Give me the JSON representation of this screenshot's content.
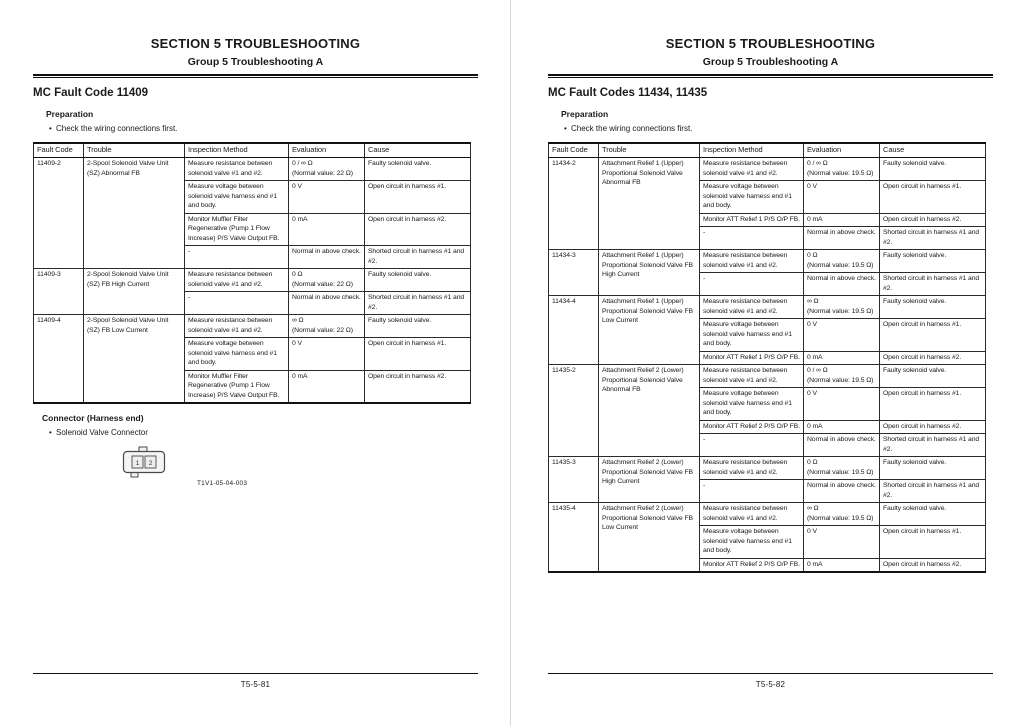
{
  "colors": {
    "text": "#1a1a1a",
    "rule": "#111111",
    "page_divider": "#d9d9d9"
  },
  "table_headers": [
    "Fault Code",
    "Trouble",
    "Inspection Method",
    "Evaluation",
    "Cause"
  ],
  "pages": [
    {
      "section_title": "SECTION 5 TROUBLESHOOTING",
      "group_title": "Group 5 Troubleshooting A",
      "heading": "MC Fault Code 11409",
      "preparation_label": "Preparation",
      "bullet": "•",
      "preparation_item": "Check the wiring connections first.",
      "table": {
        "headers": [
          "Fault Code",
          "Trouble",
          "Inspection Method",
          "Evaluation",
          "Cause"
        ],
        "rows": [
          {
            "fault_code": "11409-2",
            "trouble": "2-Spool Solenoid Valve Unit (SZ) Abnormal FB",
            "checks": [
              {
                "inspection": "Measure resistance between solenoid valve #1 and #2.",
                "evaluation": "0 / ∞ Ω",
                "evaluation_note": "(Normal value: 22 Ω)",
                "cause": "Faulty solenoid valve."
              },
              {
                "inspection": "Measure voltage between solenoid valve harness end #1 and body.",
                "evaluation": "0 V",
                "cause": "Open circuit in harness #1."
              },
              {
                "inspection": "Monitor Muffler Filter Regenerative (Pump 1 Flow Increase) P/S Valve Output FB.",
                "evaluation": "0 mA",
                "cause": "Open circuit in harness #2."
              },
              {
                "inspection": "-",
                "evaluation": "Normal in above check.",
                "cause": "Shorted circuit in harness #1 and #2."
              }
            ]
          },
          {
            "fault_code": "11409-3",
            "trouble": "2-Spool Solenoid Valve Unit (SZ) FB High Current",
            "checks": [
              {
                "inspection": "Measure resistance between solenoid valve #1 and #2.",
                "evaluation": "0 Ω",
                "evaluation_note": "(Normal value: 22 Ω)",
                "cause": "Faulty solenoid valve."
              },
              {
                "inspection": "-",
                "evaluation": "Normal in above check.",
                "cause": "Shorted circuit in harness #1 and #2."
              }
            ]
          },
          {
            "fault_code": "11409-4",
            "trouble": "2-Spool Solenoid Valve Unit (SZ) FB Low Current",
            "checks": [
              {
                "inspection": "Measure resistance between solenoid valve #1 and #2.",
                "evaluation": "∞ Ω",
                "evaluation_note": "(Normal value: 22 Ω)",
                "cause": "Faulty solenoid valve."
              },
              {
                "inspection": "Measure voltage between solenoid valve harness end #1 and body.",
                "evaluation": "0 V",
                "cause": "Open circuit in harness #1."
              },
              {
                "inspection": "Monitor Muffler Filter Regenerative (Pump 1 Flow Increase) P/S Valve Output FB.",
                "evaluation": "0 mA",
                "cause": "Open circuit in harness #2."
              }
            ]
          }
        ]
      },
      "connector": {
        "heading": "Connector (Harness end)",
        "item": "Solenoid Valve Connector",
        "pins": [
          "1",
          "2"
        ],
        "figure_code": "T1V1-05-04-003"
      },
      "page_number": "T5-5-81"
    },
    {
      "section_title": "SECTION 5 TROUBLESHOOTING",
      "group_title": "Group 5 Troubleshooting A",
      "heading": "MC Fault Codes 11434, 11435",
      "preparation_label": "Preparation",
      "bullet": "•",
      "preparation_item": "Check the wiring connections first.",
      "table": {
        "headers": [
          "Fault Code",
          "Trouble",
          "Inspection Method",
          "Evaluation",
          "Cause"
        ],
        "rows": [
          {
            "fault_code": "11434-2",
            "trouble": "Attachment Relief 1 (Upper) Proportional Solenoid Valve Abnormal FB",
            "checks": [
              {
                "inspection": "Measure resistance between solenoid valve #1 and #2.",
                "evaluation": "0 / ∞ Ω",
                "evaluation_note": "(Normal value: 19.5 Ω)",
                "cause": "Faulty solenoid valve."
              },
              {
                "inspection": "Measure voltage between solenoid valve harness end #1 and body.",
                "evaluation": "0 V",
                "cause": "Open circuit in harness #1."
              },
              {
                "inspection": "Monitor ATT Relief 1 P/S O/P FB.",
                "evaluation": "0 mA",
                "cause": "Open circuit in harness #2."
              },
              {
                "inspection": "-",
                "evaluation": "Normal in above check.",
                "cause": "Shorted circuit in harness #1 and #2."
              }
            ]
          },
          {
            "fault_code": "11434-3",
            "trouble": "Attachment Relief 1 (Upper) Proportional Solenoid Valve FB High Current",
            "checks": [
              {
                "inspection": "Measure resistance between solenoid valve #1 and #2.",
                "evaluation": "0 Ω",
                "evaluation_note": "(Normal value: 19.5 Ω)",
                "cause": "Faulty solenoid valve."
              },
              {
                "inspection": "-",
                "evaluation": "Normal in above check.",
                "cause": "Shorted circuit in harness #1 and #2."
              }
            ]
          },
          {
            "fault_code": "11434-4",
            "trouble": "Attachment Relief 1 (Upper) Proportional Solenoid Valve FB Low Current",
            "checks": [
              {
                "inspection": "Measure resistance between solenoid valve #1 and #2.",
                "evaluation": "∞ Ω",
                "evaluation_note": "(Normal value: 19.5 Ω)",
                "cause": "Faulty solenoid valve."
              },
              {
                "inspection": "Measure voltage between solenoid valve harness end #1 and body.",
                "evaluation": "0 V",
                "cause": "Open circuit in harness #1."
              },
              {
                "inspection": "Monitor ATT Relief 1 P/S O/P FB.",
                "evaluation": "0 mA",
                "cause": "Open circuit in harness #2."
              }
            ]
          },
          {
            "fault_code": "11435-2",
            "trouble": "Attachment Relief 2 (Lower) Proportional Solenoid Valve Abnormal FB",
            "checks": [
              {
                "inspection": "Measure resistance between solenoid valve #1 and #2.",
                "evaluation": "0 / ∞ Ω",
                "evaluation_note": "(Normal value: 19.5 Ω)",
                "cause": "Faulty solenoid valve."
              },
              {
                "inspection": "Measure voltage between solenoid valve harness end #1 and body.",
                "evaluation": "0 V",
                "cause": "Open circuit in harness #1."
              },
              {
                "inspection": "Monitor ATT Relief 2 P/S O/P FB.",
                "evaluation": "0 mA",
                "cause": "Open circuit in harness #2."
              },
              {
                "inspection": "-",
                "evaluation": "Normal in above check.",
                "cause": "Shorted circuit in harness #1 and #2."
              }
            ]
          },
          {
            "fault_code": "11435-3",
            "trouble": "Attachment Relief 2 (Lower) Proportional Solenoid Valve FB High Current",
            "checks": [
              {
                "inspection": "Measure resistance between solenoid valve #1 and #2.",
                "evaluation": "0 Ω",
                "evaluation_note": "(Normal value: 19.5 Ω)",
                "cause": "Faulty solenoid valve."
              },
              {
                "inspection": "-",
                "evaluation": "Normal in above check.",
                "cause": "Shorted circuit in harness #1 and #2."
              }
            ]
          },
          {
            "fault_code": "11435-4",
            "trouble": "Attachment Relief 2 (Lower) Proportional Solenoid Valve FB Low Current",
            "checks": [
              {
                "inspection": "Measure resistance between solenoid valve #1 and #2.",
                "evaluation": "∞ Ω",
                "evaluation_note": "(Normal value: 19.5 Ω)",
                "cause": "Faulty solenoid valve."
              },
              {
                "inspection": "Measure voltage between solenoid valve harness end #1 and body.",
                "evaluation": "0 V",
                "cause": "Open circuit in harness #1."
              },
              {
                "inspection": "Monitor ATT Relief 2 P/S O/P FB.",
                "evaluation": "0 mA",
                "cause": "Open circuit in harness #2."
              }
            ]
          }
        ]
      },
      "page_number": "T5-5-82"
    }
  ]
}
